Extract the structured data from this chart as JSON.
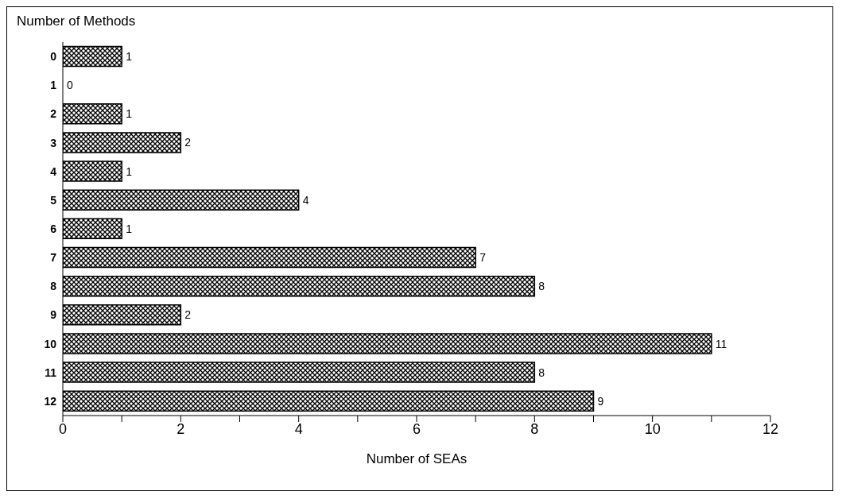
{
  "chart_data": {
    "type": "bar",
    "orientation": "horizontal",
    "xlabel": "Number of SEAs",
    "ylabel": "Number of Methods",
    "categories": [
      "0",
      "1",
      "2",
      "3",
      "4",
      "5",
      "6",
      "7",
      "8",
      "9",
      "10",
      "11",
      "12"
    ],
    "values": [
      1,
      0,
      1,
      2,
      1,
      4,
      1,
      7,
      8,
      2,
      11,
      8,
      9
    ],
    "color": "#000000",
    "xlim": [
      0,
      12
    ],
    "xticks": [
      0,
      {
        "value": 1,
        "label": null
      },
      2,
      {
        "value": 3,
        "label": null
      },
      4,
      {
        "value": 5,
        "label": null
      },
      6,
      {
        "value": 7,
        "label": null
      },
      8,
      {
        "value": 9,
        "label": null
      },
      10,
      {
        "value": 11,
        "label": null
      },
      12
    ],
    "data_labels": true,
    "grid": false,
    "legend": false
  }
}
